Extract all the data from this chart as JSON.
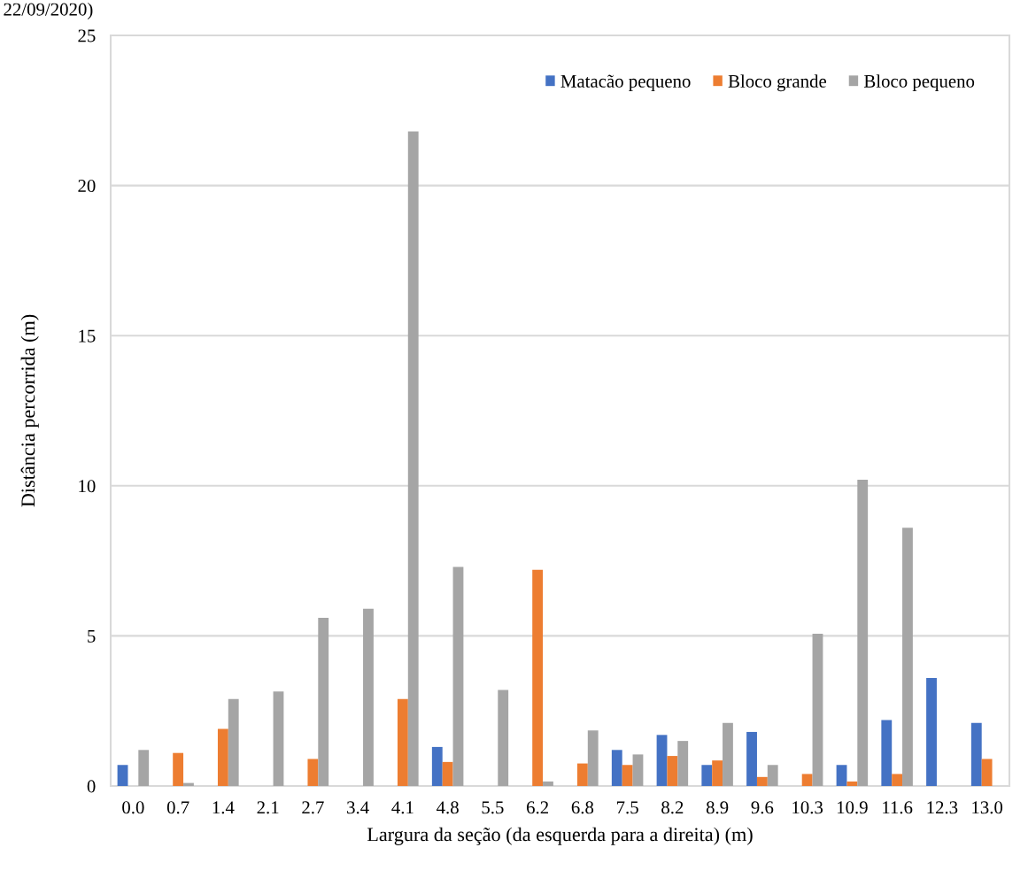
{
  "chart_data": {
    "type": "bar",
    "annotations": [
      "22/09/2020)"
    ],
    "xlabel": "Largura da seção (da esquerda para a direita) (m)",
    "ylabel": "Distância percorrida (m)",
    "categories": [
      "0.0",
      "0.7",
      "1.4",
      "2.1",
      "2.7",
      "3.4",
      "4.1",
      "4.8",
      "5.5",
      "6.2",
      "6.8",
      "7.5",
      "8.2",
      "8.9",
      "9.6",
      "10.3",
      "10.9",
      "11.6",
      "12.3",
      "13.0"
    ],
    "series": [
      {
        "name": "Matacão pequeno",
        "color": "#4472c4",
        "values": [
          0.7,
          0,
          0,
          0,
          0,
          0,
          0,
          1.3,
          0,
          0,
          0,
          1.2,
          1.7,
          0.7,
          1.8,
          0,
          0.7,
          2.2,
          3.6,
          2.1
        ]
      },
      {
        "name": "Bloco grande",
        "color": "#ed7d31",
        "values": [
          0,
          1.1,
          1.9,
          0,
          0.9,
          0,
          2.9,
          0.8,
          0,
          7.2,
          0.75,
          0.7,
          1.0,
          0.85,
          0.3,
          0.4,
          0.15,
          0.4,
          0,
          0.9
        ]
      },
      {
        "name": "Bloco pequeno",
        "color": "#a5a5a5",
        "values": [
          1.2,
          0.1,
          2.9,
          3.15,
          5.6,
          5.9,
          21.8,
          7.3,
          3.2,
          0.15,
          1.85,
          1.05,
          1.5,
          2.1,
          0.7,
          5.07,
          10.2,
          8.6,
          0,
          0
        ]
      }
    ],
    "ylim": [
      0,
      25
    ],
    "yticks": [
      0,
      5,
      10,
      15,
      20,
      25
    ],
    "grid": "y",
    "legend": "top right"
  }
}
